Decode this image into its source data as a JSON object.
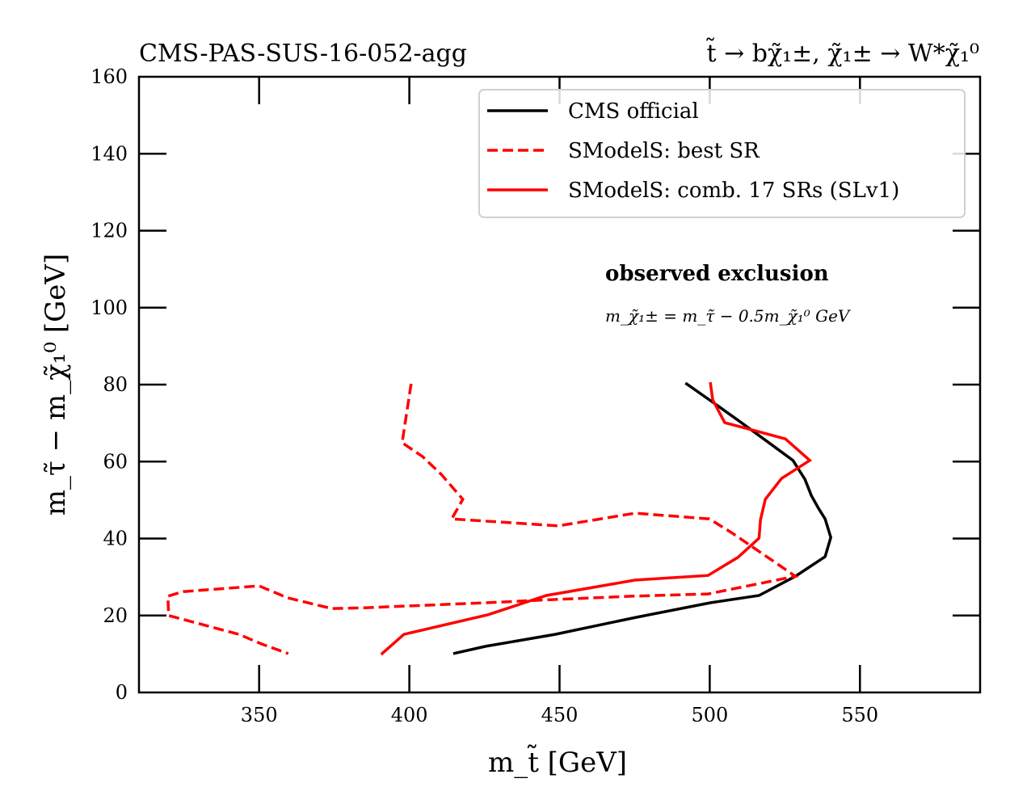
{
  "chart_data": {
    "type": "line",
    "title_left": "CMS-PAS-SUS-16-052-agg",
    "title_right": "t̃ → bχ̃₁±, χ̃₁± → W*χ̃₁⁰",
    "xlabel": "m_t̃ [GeV]",
    "ylabel": "m_τ̃ − m_χ̃₁⁰ [GeV]",
    "xlim": [
      310,
      590
    ],
    "ylim": [
      0,
      160
    ],
    "xticks": [
      350,
      400,
      450,
      500,
      550
    ],
    "yticks": [
      0,
      20,
      40,
      60,
      80,
      100,
      120,
      140,
      160
    ],
    "grid": false,
    "legend_position": "top-right",
    "annotations": {
      "heading": "observed exclusion",
      "formula": "m_χ̃₁± = m_τ̃ − 0.5m_χ̃₁⁰ GeV"
    },
    "series": [
      {
        "name": "CMS official",
        "color": "#000000",
        "style": "solid",
        "x": [
          491.9,
          500.7,
          510.2,
          520.4,
          527.7,
          531.7,
          533.8,
          536.3,
          538.4,
          540.3,
          538.4,
          528.5,
          516.4,
          500.2,
          475.4,
          448.5,
          425.4,
          414.6
        ],
        "y": [
          80.4,
          75.6,
          70.3,
          64.5,
          60.3,
          55.4,
          51.2,
          47.7,
          45.1,
          40.3,
          35.3,
          30.2,
          25.2,
          23.3,
          19.5,
          15.1,
          12.0,
          10.1
        ]
      },
      {
        "name": "SModelS: best SR",
        "color": "#ff0000",
        "style": "dashed",
        "x": [
          400.6,
          397.6,
          404.4,
          410.6,
          417.8,
          414.1,
          449.6,
          475.2,
          499.9,
          507.5,
          528.5,
          522.3,
          499.4,
          473.8,
          446.9,
          425.4,
          385.0,
          374.2,
          359.4,
          350.0,
          324.7,
          319.6,
          319.9,
          343.3,
          350.8,
          359.7
        ],
        "y": [
          80.2,
          64.9,
          61.3,
          56.7,
          50.2,
          45.1,
          43.3,
          46.6,
          45.1,
          41.4,
          30.2,
          29.2,
          25.6,
          25.0,
          24.1,
          23.3,
          22.0,
          21.8,
          24.6,
          27.7,
          26.2,
          25.0,
          20.0,
          15.1,
          12.6,
          10.1
        ]
      },
      {
        "name": "SModelS: comb. 17 SRs (SLv1)",
        "color": "#ff0000",
        "style": "solid",
        "x": [
          500.2,
          501.0,
          505.0,
          514.2,
          525.2,
          533.3,
          523.9,
          518.5,
          516.9,
          516.4,
          509.4,
          499.4,
          475.2,
          445.6,
          426.2,
          398.2,
          390.6
        ],
        "y": [
          80.6,
          76.0,
          70.1,
          68.2,
          65.9,
          60.3,
          55.6,
          50.2,
          44.9,
          40.1,
          35.1,
          30.4,
          29.2,
          25.2,
          20.2,
          15.1,
          9.9
        ]
      }
    ]
  }
}
